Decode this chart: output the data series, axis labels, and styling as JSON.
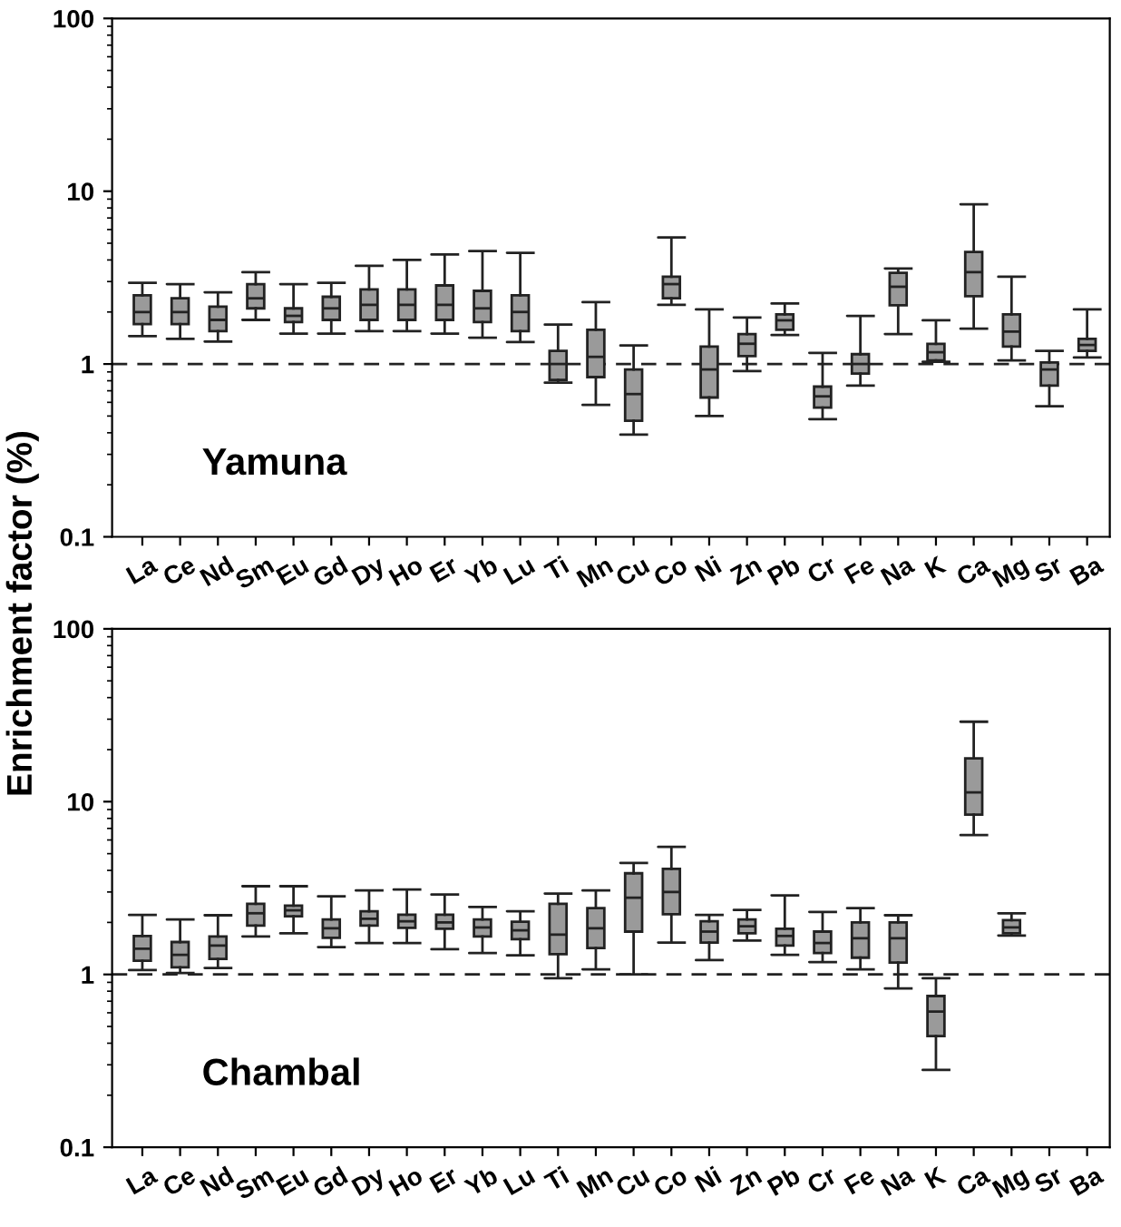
{
  "chart_data": [
    {
      "type": "box",
      "ylabel": "Enrichment factor (%)",
      "annotations": [
        "Yamuna"
      ],
      "log": true,
      "ylim": [
        0.1,
        100
      ],
      "yticks": [
        0.1,
        1,
        10,
        100
      ],
      "color": "#9a9a9a",
      "grid": false,
      "categories": [
        "La",
        "Ce",
        "Nd",
        "Sm",
        "Eu",
        "Gd",
        "Dy",
        "Ho",
        "Er",
        "Yb",
        "Lu",
        "Ti",
        "Mn",
        "Cu",
        "Co",
        "Ni",
        "Zn",
        "Pb",
        "Cr",
        "Fe",
        "Na",
        "K",
        "Ca",
        "Mg",
        "Sr",
        "Ba"
      ],
      "ref_lines": [
        {
          "axis": "y",
          "value": 1,
          "line_style": "dashed"
        }
      ],
      "boxes": [
        {
          "low": 1.45,
          "q1": 1.7,
          "median": 2.0,
          "q3": 2.5,
          "high": 2.95
        },
        {
          "low": 1.4,
          "q1": 1.7,
          "median": 2.0,
          "q3": 2.4,
          "high": 2.9
        },
        {
          "low": 1.35,
          "q1": 1.55,
          "median": 1.8,
          "q3": 2.15,
          "high": 2.6
        },
        {
          "low": 1.8,
          "q1": 2.1,
          "median": 2.4,
          "q3": 2.9,
          "high": 3.4
        },
        {
          "low": 1.5,
          "q1": 1.75,
          "median": 1.9,
          "q3": 2.1,
          "high": 2.9
        },
        {
          "low": 1.5,
          "q1": 1.8,
          "median": 2.1,
          "q3": 2.45,
          "high": 2.95
        },
        {
          "low": 1.55,
          "q1": 1.8,
          "median": 2.2,
          "q3": 2.7,
          "high": 3.7
        },
        {
          "low": 1.55,
          "q1": 1.8,
          "median": 2.2,
          "q3": 2.7,
          "high": 4.0
        },
        {
          "low": 1.5,
          "q1": 1.8,
          "median": 2.2,
          "q3": 2.85,
          "high": 4.3
        },
        {
          "low": 1.42,
          "q1": 1.75,
          "median": 2.1,
          "q3": 2.65,
          "high": 4.5
        },
        {
          "low": 1.34,
          "q1": 1.55,
          "median": 2.0,
          "q3": 2.5,
          "high": 4.4
        },
        {
          "low": 0.78,
          "q1": 0.81,
          "median": 1.0,
          "q3": 1.19,
          "high": 1.69
        },
        {
          "low": 0.58,
          "q1": 0.84,
          "median": 1.1,
          "q3": 1.58,
          "high": 2.28
        },
        {
          "low": 0.39,
          "q1": 0.47,
          "median": 0.67,
          "q3": 0.93,
          "high": 1.28
        },
        {
          "low": 2.2,
          "q1": 2.4,
          "median": 2.9,
          "q3": 3.2,
          "high": 5.4
        },
        {
          "low": 0.5,
          "q1": 0.64,
          "median": 0.93,
          "q3": 1.26,
          "high": 2.07
        },
        {
          "low": 0.91,
          "q1": 1.11,
          "median": 1.31,
          "q3": 1.49,
          "high": 1.86
        },
        {
          "low": 1.47,
          "q1": 1.58,
          "median": 1.79,
          "q3": 1.94,
          "high": 2.24
        },
        {
          "low": 0.48,
          "q1": 0.56,
          "median": 0.65,
          "q3": 0.74,
          "high": 1.16
        },
        {
          "low": 0.75,
          "q1": 0.88,
          "median": 1.0,
          "q3": 1.14,
          "high": 1.9
        },
        {
          "low": 1.49,
          "q1": 2.19,
          "median": 2.8,
          "q3": 3.37,
          "high": 3.57
        },
        {
          "low": 1.03,
          "q1": 1.05,
          "median": 1.17,
          "q3": 1.31,
          "high": 1.79
        },
        {
          "low": 1.6,
          "q1": 2.47,
          "median": 3.4,
          "q3": 4.45,
          "high": 8.4
        },
        {
          "low": 1.05,
          "q1": 1.26,
          "median": 1.54,
          "q3": 1.94,
          "high": 3.2
        },
        {
          "low": 0.57,
          "q1": 0.75,
          "median": 0.93,
          "q3": 1.02,
          "high": 1.19
        },
        {
          "low": 1.09,
          "q1": 1.19,
          "median": 1.29,
          "q3": 1.4,
          "high": 2.07
        }
      ]
    },
    {
      "type": "box",
      "annotations": [
        "Chambal"
      ],
      "log": true,
      "ylim": [
        0.1,
        100
      ],
      "yticks": [
        0.1,
        1,
        10,
        100
      ],
      "color": "#9a9a9a",
      "grid": false,
      "categories": [
        "La",
        "Ce",
        "Nd",
        "Sm",
        "Eu",
        "Gd",
        "Dy",
        "Ho",
        "Er",
        "Yb",
        "Lu",
        "Ti",
        "Mn",
        "Cu",
        "Co",
        "Ni",
        "Zn",
        "Pb",
        "Cr",
        "Fe",
        "Na",
        "K",
        "Ca",
        "Mg",
        "Sr",
        "Ba"
      ],
      "ref_lines": [
        {
          "axis": "y",
          "value": 1,
          "line_style": "dashed"
        }
      ],
      "boxes": [
        {
          "low": 1.06,
          "q1": 1.2,
          "median": 1.41,
          "q3": 1.67,
          "high": 2.21
        },
        {
          "low": 1.02,
          "q1": 1.1,
          "median": 1.3,
          "q3": 1.54,
          "high": 2.08
        },
        {
          "low": 1.09,
          "q1": 1.23,
          "median": 1.47,
          "q3": 1.66,
          "high": 2.2
        },
        {
          "low": 1.66,
          "q1": 1.92,
          "median": 2.26,
          "q3": 2.56,
          "high": 3.24
        },
        {
          "low": 1.73,
          "q1": 2.17,
          "median": 2.35,
          "q3": 2.5,
          "high": 3.24
        },
        {
          "low": 1.44,
          "q1": 1.63,
          "median": 1.85,
          "q3": 2.08,
          "high": 2.83
        },
        {
          "low": 1.52,
          "q1": 1.92,
          "median": 2.1,
          "q3": 2.32,
          "high": 3.06
        },
        {
          "low": 1.52,
          "q1": 1.86,
          "median": 2.03,
          "q3": 2.22,
          "high": 3.1
        },
        {
          "low": 1.4,
          "q1": 1.84,
          "median": 2.0,
          "q3": 2.22,
          "high": 2.9
        },
        {
          "low": 1.33,
          "q1": 1.66,
          "median": 1.87,
          "q3": 2.08,
          "high": 2.46
        },
        {
          "low": 1.29,
          "q1": 1.6,
          "median": 1.8,
          "q3": 2.02,
          "high": 2.32
        },
        {
          "low": 0.95,
          "q1": 1.31,
          "median": 1.7,
          "q3": 2.56,
          "high": 2.94
        },
        {
          "low": 1.07,
          "q1": 1.42,
          "median": 1.85,
          "q3": 2.42,
          "high": 3.06
        },
        {
          "low": 1.0,
          "q1": 1.77,
          "median": 2.78,
          "q3": 3.85,
          "high": 4.42
        },
        {
          "low": 1.53,
          "q1": 2.23,
          "median": 3.0,
          "q3": 4.08,
          "high": 5.47
        },
        {
          "low": 1.21,
          "q1": 1.53,
          "median": 1.77,
          "q3": 2.03,
          "high": 2.21
        },
        {
          "low": 1.57,
          "q1": 1.73,
          "median": 1.9,
          "q3": 2.08,
          "high": 2.36
        },
        {
          "low": 1.3,
          "q1": 1.47,
          "median": 1.67,
          "q3": 1.84,
          "high": 2.87
        },
        {
          "low": 1.18,
          "q1": 1.33,
          "median": 1.52,
          "q3": 1.77,
          "high": 2.3
        },
        {
          "low": 1.07,
          "q1": 1.25,
          "median": 1.62,
          "q3": 2.0,
          "high": 2.42
        },
        {
          "low": 0.83,
          "q1": 1.17,
          "median": 1.62,
          "q3": 2.0,
          "high": 2.2
        },
        {
          "low": 0.28,
          "q1": 0.44,
          "median": 0.61,
          "q3": 0.75,
          "high": 0.95
        },
        {
          "low": 6.4,
          "q1": 8.4,
          "median": 11.3,
          "q3": 17.8,
          "high": 29
        },
        {
          "low": 1.68,
          "q1": 1.73,
          "median": 1.87,
          "q3": 2.06,
          "high": 2.26
        },
        null,
        null
      ]
    }
  ]
}
